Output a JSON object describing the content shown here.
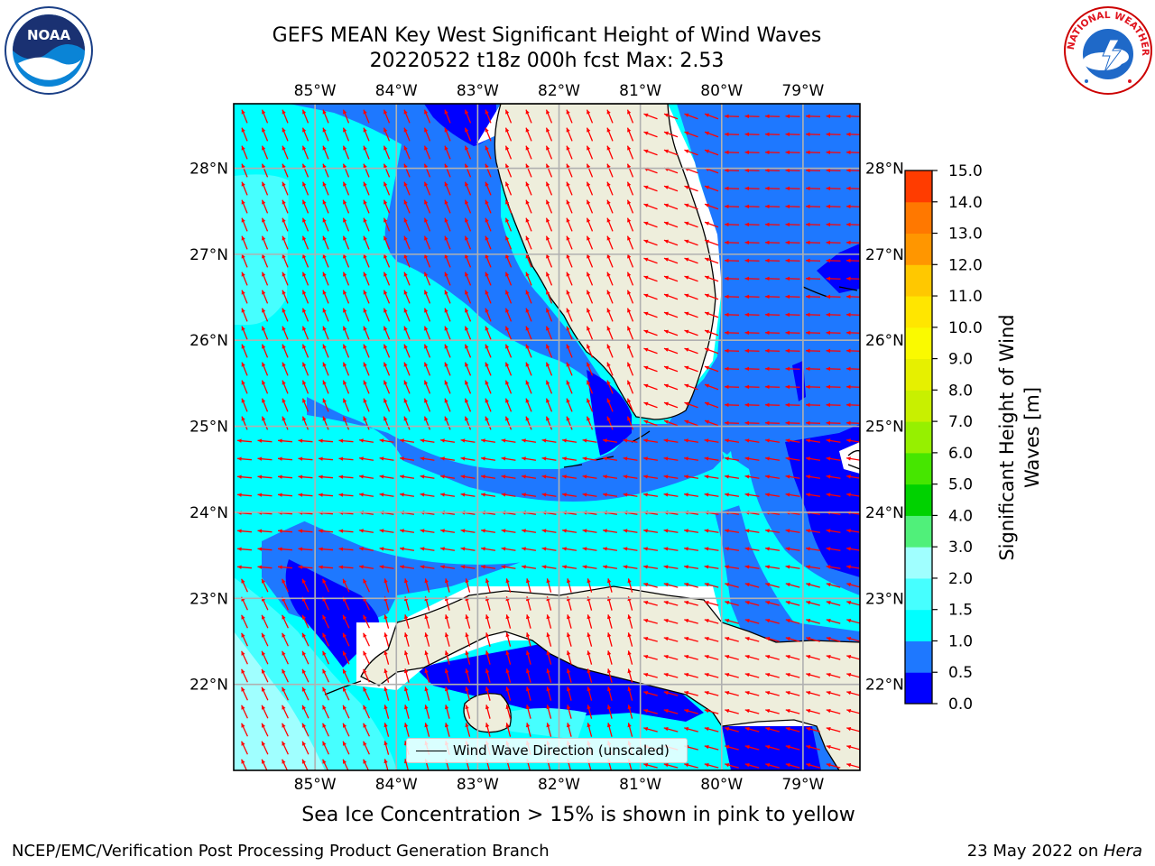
{
  "title_line1": "GEFS MEAN Key West Significant Height of Wind Waves",
  "title_line2": "20220522 t18z 000h fcst   Max: 2.53",
  "logos": {
    "noaa": {
      "icon": "noaa-logo",
      "text": "NOAA"
    },
    "nws": {
      "icon": "nws-logo",
      "ring_text": "NATIONAL WEATHER SERVICE"
    }
  },
  "map": {
    "projection": "lat-lon",
    "lon_range": [
      -86.0,
      -78.3
    ],
    "lat_range": [
      21.0,
      28.75
    ],
    "lon_ticks": [
      {
        "value": -85,
        "label": "85°W"
      },
      {
        "value": -84,
        "label": "84°W"
      },
      {
        "value": -83,
        "label": "83°W"
      },
      {
        "value": -82,
        "label": "82°W"
      },
      {
        "value": -81,
        "label": "81°W"
      },
      {
        "value": -80,
        "label": "80°W"
      },
      {
        "value": -79,
        "label": "79°W"
      }
    ],
    "lat_ticks": [
      {
        "value": 28,
        "label": "28°N"
      },
      {
        "value": 27,
        "label": "27°N"
      },
      {
        "value": 26,
        "label": "26°N"
      },
      {
        "value": 25,
        "label": "25°N"
      },
      {
        "value": 24,
        "label": "24°N"
      },
      {
        "value": 23,
        "label": "23°N"
      },
      {
        "value": 22,
        "label": "22°N"
      }
    ],
    "grid": true,
    "land_color": "#eeeedc",
    "arrow_color": "#ff0000",
    "legend_label": "Wind Wave Direction (unscaled)",
    "legend_placement": "lower-center"
  },
  "colorbar": {
    "title_line1": "Significant Height of Wind",
    "title_line2": "Waves [m]",
    "levels": [
      "0.0",
      "0.5",
      "1.0",
      "1.5",
      "2.0",
      "3.0",
      "4.0",
      "5.0",
      "6.0",
      "7.0",
      "8.0",
      "9.0",
      "10.0",
      "11.0",
      "12.0",
      "13.0",
      "14.0",
      "15.0"
    ],
    "colors": [
      "#0000ff",
      "#1e78ff",
      "#00ffff",
      "#46ffff",
      "#a0ffff",
      "#50f07a",
      "#00d200",
      "#46e600",
      "#96f000",
      "#c8f000",
      "#e6f000",
      "#fafa00",
      "#ffe600",
      "#ffc800",
      "#ff9600",
      "#ff7800",
      "#ff3c00",
      "#ff0000"
    ]
  },
  "footnote": "Sea Ice Concentration > 15% is shown in pink to yellow",
  "credit_left": "NCEP/EMC/Verification Post Processing Product Generation Branch",
  "credit_right_prefix": "23 May 2022 on ",
  "credit_right_host": "Hera"
}
